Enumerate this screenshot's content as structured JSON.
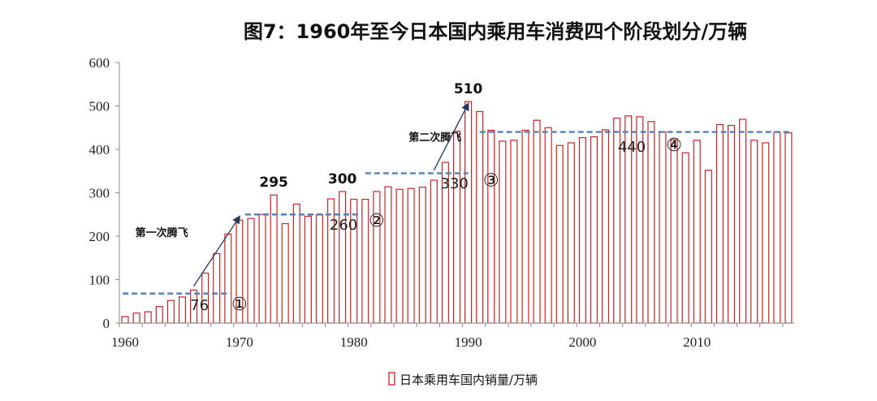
{
  "colors": {
    "bar_stroke": "#d42020",
    "level_line": "#4f81bd",
    "arrow": "#1f3864",
    "axis": "#888888"
  },
  "chart_data": {
    "type": "bar",
    "title": "图7：1960年至今日本国内乘用车消费四个阶段划分/万辆",
    "legend": {
      "label": "日本乘用车国内销量/万辆",
      "position": "bottom"
    },
    "ylim": [
      0,
      600
    ],
    "yticks": [
      "0",
      "100",
      "200",
      "300",
      "400",
      "500",
      "600"
    ],
    "xticks": [
      "1960",
      "1970",
      "1980",
      "1990",
      "2000",
      "2010"
    ],
    "x_start": 1960,
    "x_end": 2018,
    "x": [
      1960,
      1961,
      1962,
      1963,
      1964,
      1965,
      1966,
      1967,
      1968,
      1969,
      1970,
      1971,
      1972,
      1973,
      1974,
      1975,
      1976,
      1977,
      1978,
      1979,
      1980,
      1981,
      1982,
      1983,
      1984,
      1985,
      1986,
      1987,
      1988,
      1989,
      1990,
      1991,
      1992,
      1993,
      1994,
      1995,
      1996,
      1997,
      1998,
      1999,
      2000,
      2001,
      2002,
      2003,
      2004,
      2005,
      2006,
      2007,
      2008,
      2009,
      2010,
      2011,
      2012,
      2013,
      2014,
      2015,
      2016,
      2017,
      2018
    ],
    "values": [
      15,
      23,
      26,
      38,
      52,
      60,
      76,
      115,
      160,
      205,
      237,
      241,
      250,
      295,
      229,
      274,
      246,
      249,
      286,
      303,
      285,
      285,
      303,
      314,
      308,
      310,
      313,
      329,
      370,
      442,
      510,
      487,
      444,
      419,
      421,
      444,
      467,
      450,
      409,
      415,
      427,
      429,
      445,
      472,
      477,
      475,
      464,
      440,
      422,
      392,
      421,
      352,
      457,
      455,
      469,
      421,
      415,
      439,
      438
    ],
    "annotations": {
      "peaks": [
        {
          "label": "295",
          "x": 1973,
          "y": 295
        },
        {
          "label": "300",
          "x": 1979,
          "y": 303
        },
        {
          "label": "510",
          "x": 1990,
          "y": 510
        }
      ],
      "stages": [
        {
          "value_label": "76",
          "marker": "①",
          "level": 68,
          "x_from": 1959.8,
          "x_to": 1969.2,
          "label_x": 1966.5,
          "label_y": 30,
          "marker_x": 1970,
          "marker_y": 30
        },
        {
          "value_label": "260",
          "marker": "②",
          "level": 250,
          "x_from": 1970.5,
          "x_to": 1980.7,
          "label_x": 1979.1,
          "label_y": 215,
          "marker_x": 1982,
          "marker_y": 222
        },
        {
          "value_label": "330",
          "marker": "③",
          "level": 345,
          "x_from": 1981,
          "x_to": 1990,
          "label_x": 1988.8,
          "label_y": 310,
          "marker_x": 1992,
          "marker_y": 315
        },
        {
          "value_label": "440",
          "marker": "④",
          "level": 440,
          "x_from": 1991,
          "x_to": 2018.3,
          "label_x": 2004.3,
          "label_y": 394,
          "marker_x": 2008,
          "marker_y": 396
        }
      ],
      "surges": [
        {
          "label": "第一次腾飞",
          "from": [
            1966,
            85
          ],
          "to": [
            1970,
            245
          ],
          "label_x": 1963.2,
          "label_y": 200
        },
        {
          "label": "第二次腾飞",
          "from": [
            1987,
            352
          ],
          "to": [
            1990,
            505
          ],
          "label_x": 1987.1,
          "label_y": 420
        }
      ]
    }
  }
}
